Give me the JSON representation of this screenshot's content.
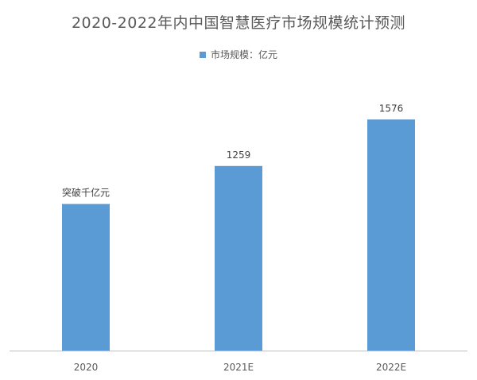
{
  "chart_data": {
    "type": "bar",
    "title": "2020-2022年内中国智慧医疗市场规模统计预测",
    "categories": [
      "2020",
      "2021E",
      "2022E"
    ],
    "series": [
      {
        "name": "市场规模：亿元",
        "values": [
          1000,
          1259,
          1576
        ],
        "data_labels": [
          "突破千亿元",
          "1259",
          "1576"
        ]
      }
    ],
    "ylim": [
      0,
      1800
    ],
    "grid": false,
    "legend_position": "top",
    "colors": {
      "bar": "#5b9bd5",
      "axis": "#bfbfbf",
      "text": "#595959",
      "label": "#404040"
    }
  }
}
